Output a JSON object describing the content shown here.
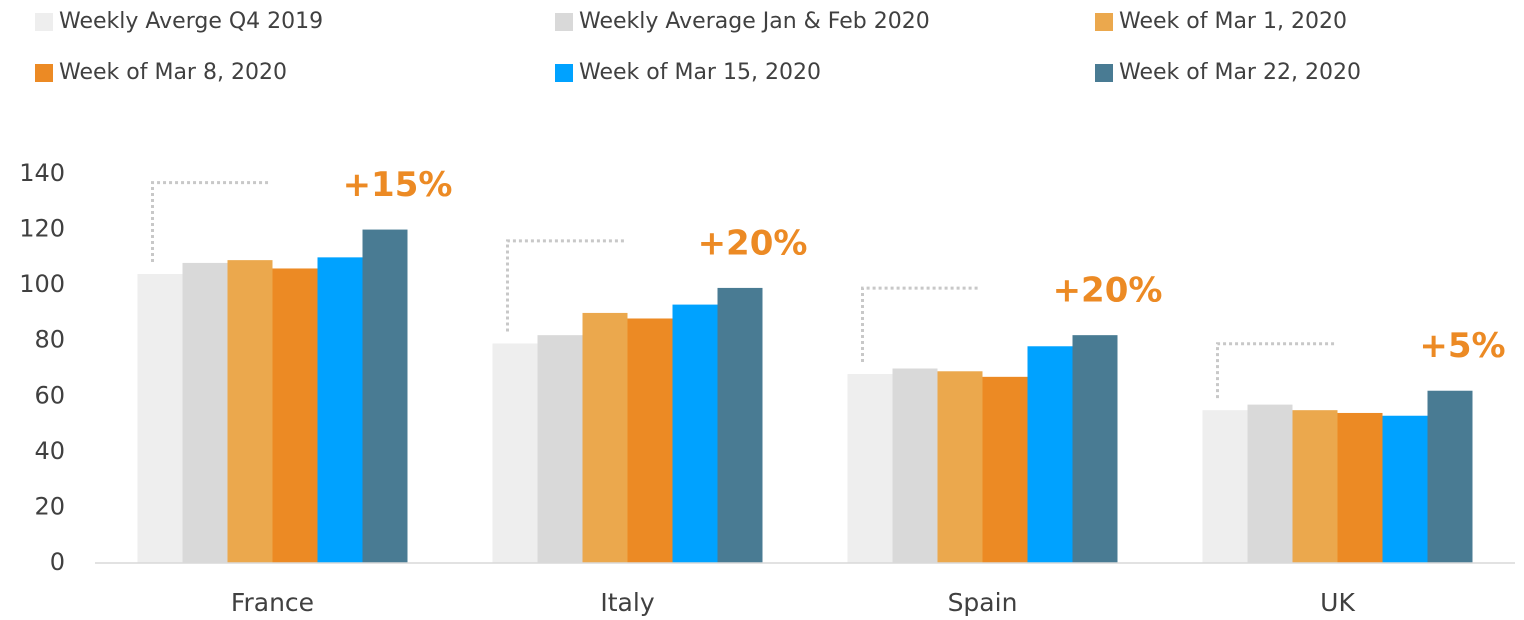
{
  "chart_data": {
    "type": "bar",
    "categories": [
      "France",
      "Italy",
      "Spain",
      "UK"
    ],
    "series": [
      {
        "name": "Weekly Averge Q4 2019",
        "color": "#eeeeee",
        "values": [
          104,
          79,
          68,
          55
        ]
      },
      {
        "name": "Weekly Average Jan & Feb 2020",
        "color": "#d9d9d9",
        "values": [
          108,
          82,
          70,
          57
        ]
      },
      {
        "name": "Week of Mar 1, 2020",
        "color": "#eba84d",
        "values": [
          109,
          90,
          69,
          55
        ]
      },
      {
        "name": "Week of Mar 8, 2020",
        "color": "#ec8a24",
        "values": [
          106,
          88,
          67,
          54
        ]
      },
      {
        "name": "Week of Mar 15, 2020",
        "color": "#00a2ff",
        "values": [
          110,
          93,
          78,
          53
        ]
      },
      {
        "name": "Week of Mar 22, 2020",
        "color": "#497b93",
        "values": [
          120,
          99,
          82,
          62
        ]
      }
    ],
    "annotations": [
      "+15%",
      "+20%",
      "+20%",
      "+5%"
    ],
    "ylim": [
      0,
      140
    ],
    "yticks": [
      0,
      20,
      40,
      60,
      80,
      100,
      120,
      140
    ],
    "grid": false,
    "legend": "top"
  }
}
